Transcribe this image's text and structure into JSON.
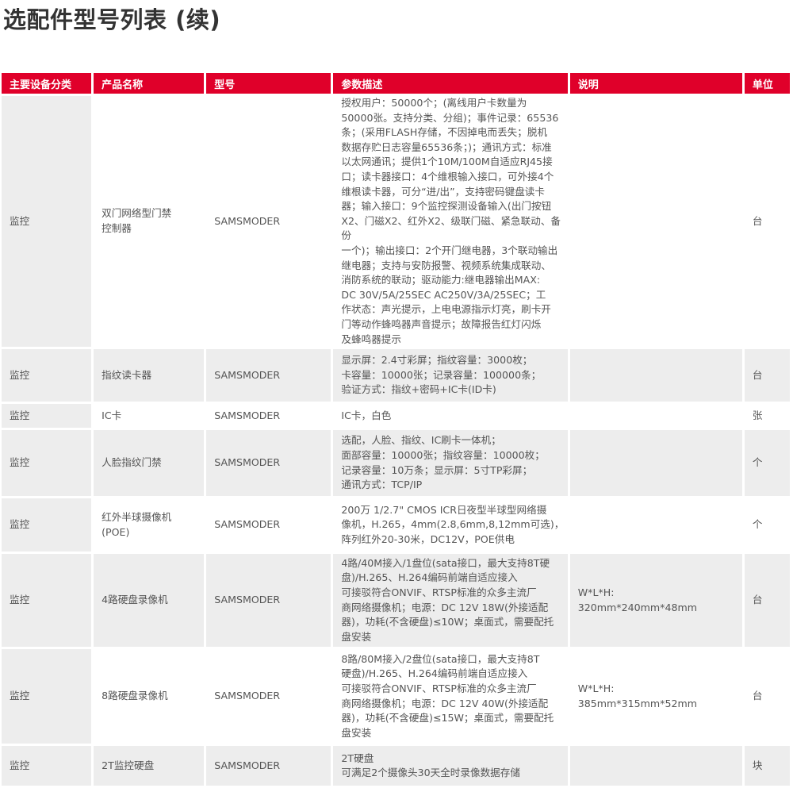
{
  "title": "选配件型号列表 (续)",
  "colors": {
    "header": "#e0002a",
    "stripe": "#ededed"
  },
  "headers": [
    "主要设备分类",
    "产品名称",
    "型号",
    "参数描述",
    "说明",
    "单位"
  ],
  "rows": [
    {
      "category": "监控",
      "name": "双门网络型门禁\n控制器",
      "model": "SAMSMODER",
      "params": "授权用户：50000个；(离线用户卡数量为\n50000张。支持分类、分组)；事件记录：65536\n条；(采用FLASH存储，不因掉电而丢失；脱机\n数据存贮日志容量65536条；)；通讯方式：标准\n以太网通讯；提供1个10M/100M自适应RJ45接\n口；读卡器接口：4个维根输入接口，可外接4个\n维根读卡器，可分“进/出”，支持密码键盘读卡\n器；输入接口：9个监控探测设备输入(出门按钮\nX2、门磁X2、红外X2、级联门磁、紧急联动、备份\n一个)；输出接口：2个开门继电器，3个联动输出\n继电器；支持与安防报警、视频系统集成联动、\n消防系统的联动；驱动能力:继电器输出MAX:\nDC 30V/5A/25SEC   AC250V/3A/25SEC；工\n作状态：声光提示，上电电源指示灯亮，刷卡开\n门等动作蜂鸣器声音提示；故障报告红灯闪烁\n及蜂鸣器提示",
      "note": "",
      "unit": "台"
    },
    {
      "category": "监控",
      "name": "指纹读卡器",
      "model": "SAMSMODER",
      "params": "显示屏：2.4寸彩屏；指纹容量：3000枚；\n卡容量：10000张；记录容量：100000条；\n验证方式：指纹+密码+IC卡(ID卡)",
      "note": "",
      "unit": "台"
    },
    {
      "category": "监控",
      "name": "IC卡",
      "model": "SAMSMODER",
      "params": "IC卡，白色",
      "note": "",
      "unit": "张"
    },
    {
      "category": "监控",
      "name": "人脸指纹门禁",
      "model": "SAMSMODER",
      "params": "选配，人脸、指纹、IC刷卡一体机；\n面部容量：10000张；指纹容量：10000枚；\n记录容量：10万条；显示屏：5寸TP彩屏；\n通讯方式：TCP/IP",
      "note": "",
      "unit": "个"
    },
    {
      "category": "监控",
      "name": "红外半球摄像机\n(POE)",
      "model": "SAMSMODER",
      "params": "200万 1/2.7\" CMOS ICR日夜型半球型网络摄\n像机，H.265，4mm(2.8,6mm,8,12mm可选)，\n阵列红外20-30米，DC12V，POE供电",
      "note": "",
      "unit": "个"
    },
    {
      "category": "监控",
      "name": "4路硬盘录像机",
      "model": "SAMSMODER",
      "params": "4路/40M接入/1盘位(sata接口，最大支持8T硬\n盘)/H.265、H.264编码前端自适应接入\n可接驳符合ONVIF、RTSP标准的众多主流厂\n商网络摄像机；电源：DC 12V 18W(外接适配\n器)，功耗(不含硬盘)≤10W；桌面式，需要配托\n盘安装",
      "note": "W*L*H:\n320mm*240mm*48mm",
      "unit": "台"
    },
    {
      "category": "监控",
      "name": "8路硬盘录像机",
      "model": "SAMSMODER",
      "params": "8路/80M接入/2盘位(sata接口，最大支持8T\n硬盘)/H.265、H.264编码前端自适应接入\n可接驳符合ONVIF、RTSP标准的众多主流厂\n商网络摄像机；电源：DC 12V 40W(外接适配\n器)，功耗(不含硬盘)≤15W；桌面式，需要配托\n盘安装",
      "note": "W*L*H:\n385mm*315mm*52mm",
      "unit": "台"
    },
    {
      "category": "监控",
      "name": "2T监控硬盘",
      "model": "SAMSMODER",
      "params": "2T硬盘\n可满足2个摄像头30天全时录像数据存储",
      "note": "",
      "unit": "块"
    }
  ]
}
